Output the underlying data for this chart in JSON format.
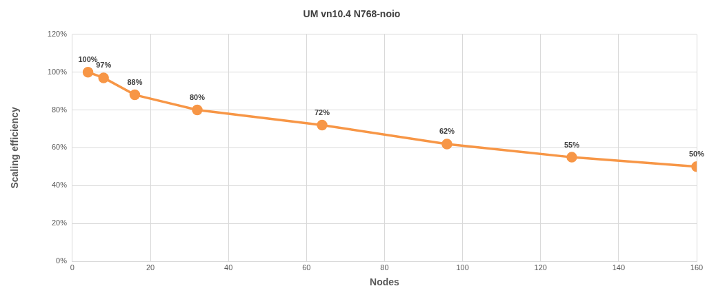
{
  "chart_data": {
    "type": "line",
    "title": "UM vn10.4 N768-noio",
    "xlabel": "Nodes",
    "ylabel": "Scaling efficiency",
    "x": [
      4,
      8,
      16,
      32,
      64,
      96,
      128,
      160
    ],
    "series": [
      {
        "color": "#f79646",
        "values": [
          100,
          97,
          88,
          80,
          72,
          62,
          55,
          50
        ]
      }
    ],
    "xlim": [
      0,
      160
    ],
    "xticks": [
      0,
      20,
      40,
      60,
      80,
      100,
      120,
      140,
      160
    ],
    "ylim": [
      0,
      120
    ],
    "yticks": [
      {
        "value": 0,
        "label": "0%"
      },
      {
        "value": 20,
        "label": "20%"
      },
      {
        "value": 40,
        "label": "40%"
      },
      {
        "value": 60,
        "label": "60%"
      },
      {
        "value": 80,
        "label": "80%"
      },
      {
        "value": 100,
        "label": "100%"
      },
      {
        "value": 120,
        "label": "120%"
      }
    ],
    "value_labels": [
      "100%",
      "97%",
      "88%",
      "80%",
      "72%",
      "62%",
      "55%",
      "50%"
    ],
    "grid": true,
    "legend": false,
    "marker": "circle",
    "line_style": "solid"
  }
}
